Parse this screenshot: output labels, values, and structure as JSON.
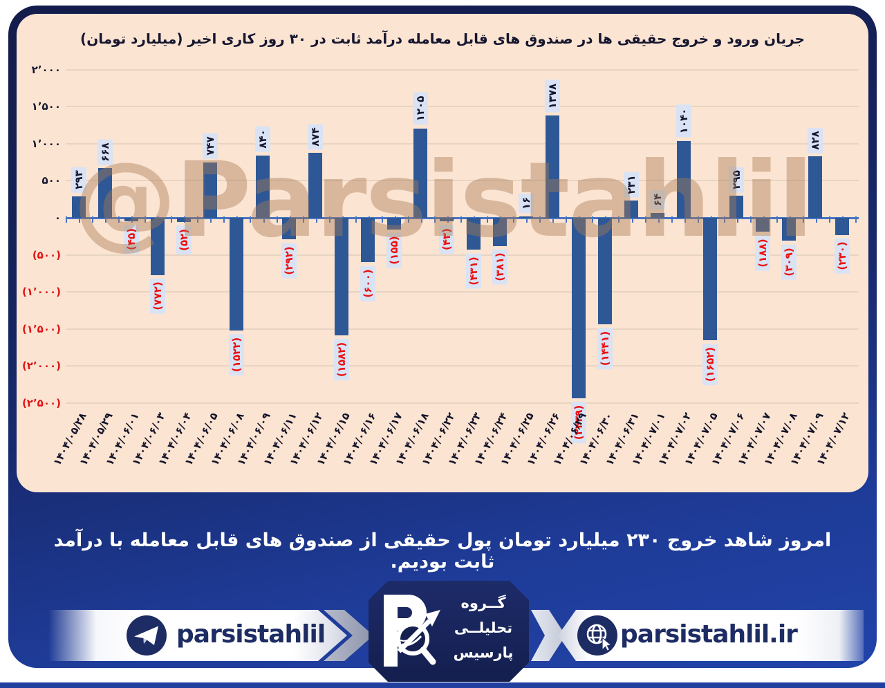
{
  "watermark": "@Parsistahlil",
  "summary_text": "امروز شاهد خروج ۲۳۰ میلیارد تومان پول حقیقی از صندوق های قابل معامله با درآمد ثابت بودیم.",
  "chart_data": {
    "type": "bar",
    "title": "جریان ورود و خروج حقیقی ها در صندوق های قابل معامله درآمد ثابت در ۳۰ روز کاری اخیر (میلیارد تومان)",
    "ylabel": "میلیارد تومان",
    "ylim": [
      -2500,
      2000
    ],
    "grid": true,
    "bar_color": "#2e5796",
    "positive_label_color": "#14142e",
    "negative_label_color": "#ec0f0f",
    "y_ticks": [
      {
        "value": 2000,
        "label": "۲٬۰۰۰"
      },
      {
        "value": 1500,
        "label": "۱٬۵۰۰"
      },
      {
        "value": 1000,
        "label": "۱٬۰۰۰"
      },
      {
        "value": 500,
        "label": "۵۰۰"
      },
      {
        "value": 0,
        "label": "۰"
      },
      {
        "value": -500,
        "label": "(۵۰۰)"
      },
      {
        "value": -1000,
        "label": "(۱٬۰۰۰)"
      },
      {
        "value": -1500,
        "label": "(۱٬۵۰۰)"
      },
      {
        "value": -2000,
        "label": "(۲٬۰۰۰)"
      },
      {
        "value": -2500,
        "label": "(۲٬۵۰۰)"
      }
    ],
    "bars": [
      {
        "date": "۱۴۰۴/۰۵/۲۸",
        "value": 293,
        "label": "۲۹۳"
      },
      {
        "date": "۱۴۰۴/۰۵/۲۹",
        "value": 668,
        "label": "۶۶۸"
      },
      {
        "date": "۱۴۰۴/۰۶/۰۱",
        "value": -45,
        "label": "(۴۵)"
      },
      {
        "date": "۱۴۰۴/۰۶/۰۳",
        "value": -772,
        "label": "(۷۷۲)"
      },
      {
        "date": "۱۴۰۴/۰۶/۰۴",
        "value": -52,
        "label": "(۵۲)"
      },
      {
        "date": "۱۴۰۴/۰۶/۰۵",
        "value": 747,
        "label": "۷۴۷"
      },
      {
        "date": "۱۴۰۴/۰۶/۰۸",
        "value": -1522,
        "label": "(۱۵۲۲)"
      },
      {
        "date": "۱۴۰۴/۰۶/۰۹",
        "value": 840,
        "label": "۸۴۰"
      },
      {
        "date": "۱۴۰۴/۰۶/۱۱",
        "value": -292,
        "label": "(۲۹۲)"
      },
      {
        "date": "۱۴۰۴/۰۶/۱۲",
        "value": 874,
        "label": "۸۷۴"
      },
      {
        "date": "۱۴۰۴/۰۶/۱۵",
        "value": -1582,
        "label": "(۱۵۸۲)"
      },
      {
        "date": "۱۴۰۴/۰۶/۱۶",
        "value": -600,
        "label": "(۶۰۰)"
      },
      {
        "date": "۱۴۰۴/۰۶/۱۷",
        "value": -155,
        "label": "(۱۵۵)"
      },
      {
        "date": "۱۴۰۴/۰۶/۱۸",
        "value": 1205,
        "label": "۱۲۰۵"
      },
      {
        "date": "۱۴۰۴/۰۶/۲۲",
        "value": -43,
        "label": "(۴۳)"
      },
      {
        "date": "۱۴۰۴/۰۶/۲۳",
        "value": -431,
        "label": "(۴۳۱)"
      },
      {
        "date": "۱۴۰۴/۰۶/۲۴",
        "value": -381,
        "label": "(۳۸۱)"
      },
      {
        "date": "۱۴۰۴/۰۶/۲۵",
        "value": 16,
        "label": "۱۶"
      },
      {
        "date": "۱۴۰۴/۰۶/۲۶",
        "value": 1378,
        "label": "۱۳۷۸"
      },
      {
        "date": "۱۴۰۴/۰۶/۲۹",
        "value": -2439,
        "label": "(۲۴۳۹)"
      },
      {
        "date": "۱۴۰۴/۰۶/۳۰",
        "value": -1441,
        "label": "(۱۴۴۱)"
      },
      {
        "date": "۱۴۰۴/۰۶/۳۱",
        "value": 231,
        "label": "۲۳۱"
      },
      {
        "date": "۱۴۰۴/۰۷/۰۱",
        "value": 64,
        "label": "۶۴"
      },
      {
        "date": "۱۴۰۴/۰۷/۰۲",
        "value": 1040,
        "label": "۱۰۴۰"
      },
      {
        "date": "۱۴۰۴/۰۷/۰۵",
        "value": -1652,
        "label": "(۱۶۵۲)"
      },
      {
        "date": "۱۴۰۴/۰۷/۰۶",
        "value": 295,
        "label": "۲۹۵"
      },
      {
        "date": "۱۴۰۴/۰۷/۰۷",
        "value": -188,
        "label": "(۱۸۸)"
      },
      {
        "date": "۱۴۰۴/۰۷/۰۸",
        "value": -309,
        "label": "(۳۰۹)"
      },
      {
        "date": "۱۴۰۴/۰۷/۰۹",
        "value": 828,
        "label": "۸۲۸"
      },
      {
        "date": "۱۴۰۴/۰۷/۱۲",
        "value": -230,
        "label": "(۲۳۰)"
      }
    ]
  },
  "footer": {
    "telegram_handle": "parsistahlil",
    "website": "parsistahlil.ir",
    "brand_lines": [
      "گــروه",
      "تحلیلــی",
      "پارسیس"
    ]
  }
}
